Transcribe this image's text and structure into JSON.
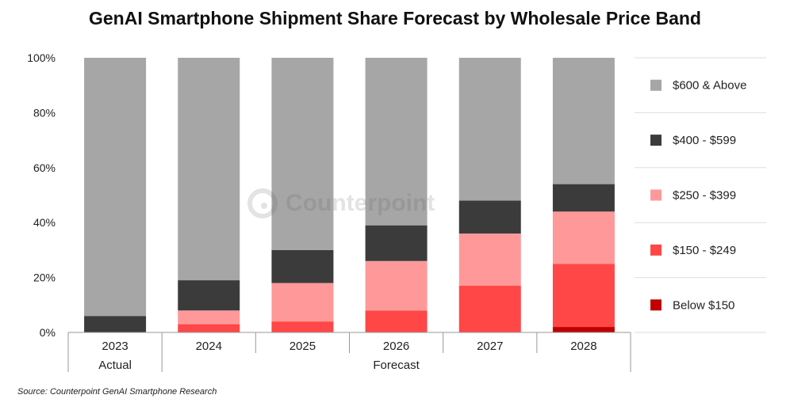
{
  "chart_data": {
    "type": "bar",
    "stacked": true,
    "title": "GenAI Smartphone Shipment Share Forecast by Wholesale Price Band",
    "categories": [
      "2023",
      "2024",
      "2025",
      "2026",
      "2027",
      "2028"
    ],
    "category_groups": [
      {
        "label": "Actual",
        "categories": [
          "2023"
        ]
      },
      {
        "label": "Forecast",
        "categories": [
          "2024",
          "2025",
          "2026",
          "2027",
          "2028"
        ]
      }
    ],
    "series": [
      {
        "name": "Below $150",
        "color": "#c00000",
        "values": [
          0,
          0,
          0,
          0,
          0,
          2
        ]
      },
      {
        "name": "$150 - $249",
        "color": "#ff4747",
        "values": [
          0,
          3,
          4,
          8,
          17,
          23
        ]
      },
      {
        "name": "$250 - $399",
        "color": "#ff9999",
        "values": [
          0,
          5,
          14,
          18,
          19,
          19
        ]
      },
      {
        "name": "$400 - $599",
        "color": "#3b3b3b",
        "values": [
          6,
          11,
          12,
          13,
          12,
          10
        ]
      },
      {
        "name": "$600 & Above",
        "color": "#a6a6a6",
        "values": [
          94,
          81,
          70,
          61,
          52,
          46
        ]
      }
    ],
    "yticks": [
      "0%",
      "20%",
      "40%",
      "60%",
      "80%",
      "100%"
    ],
    "ylim": [
      0,
      100
    ],
    "grid": false,
    "legend_position": "right"
  },
  "watermark": "Counterpoint",
  "source": "Source: Counterpoint GenAI Smartphone Research"
}
